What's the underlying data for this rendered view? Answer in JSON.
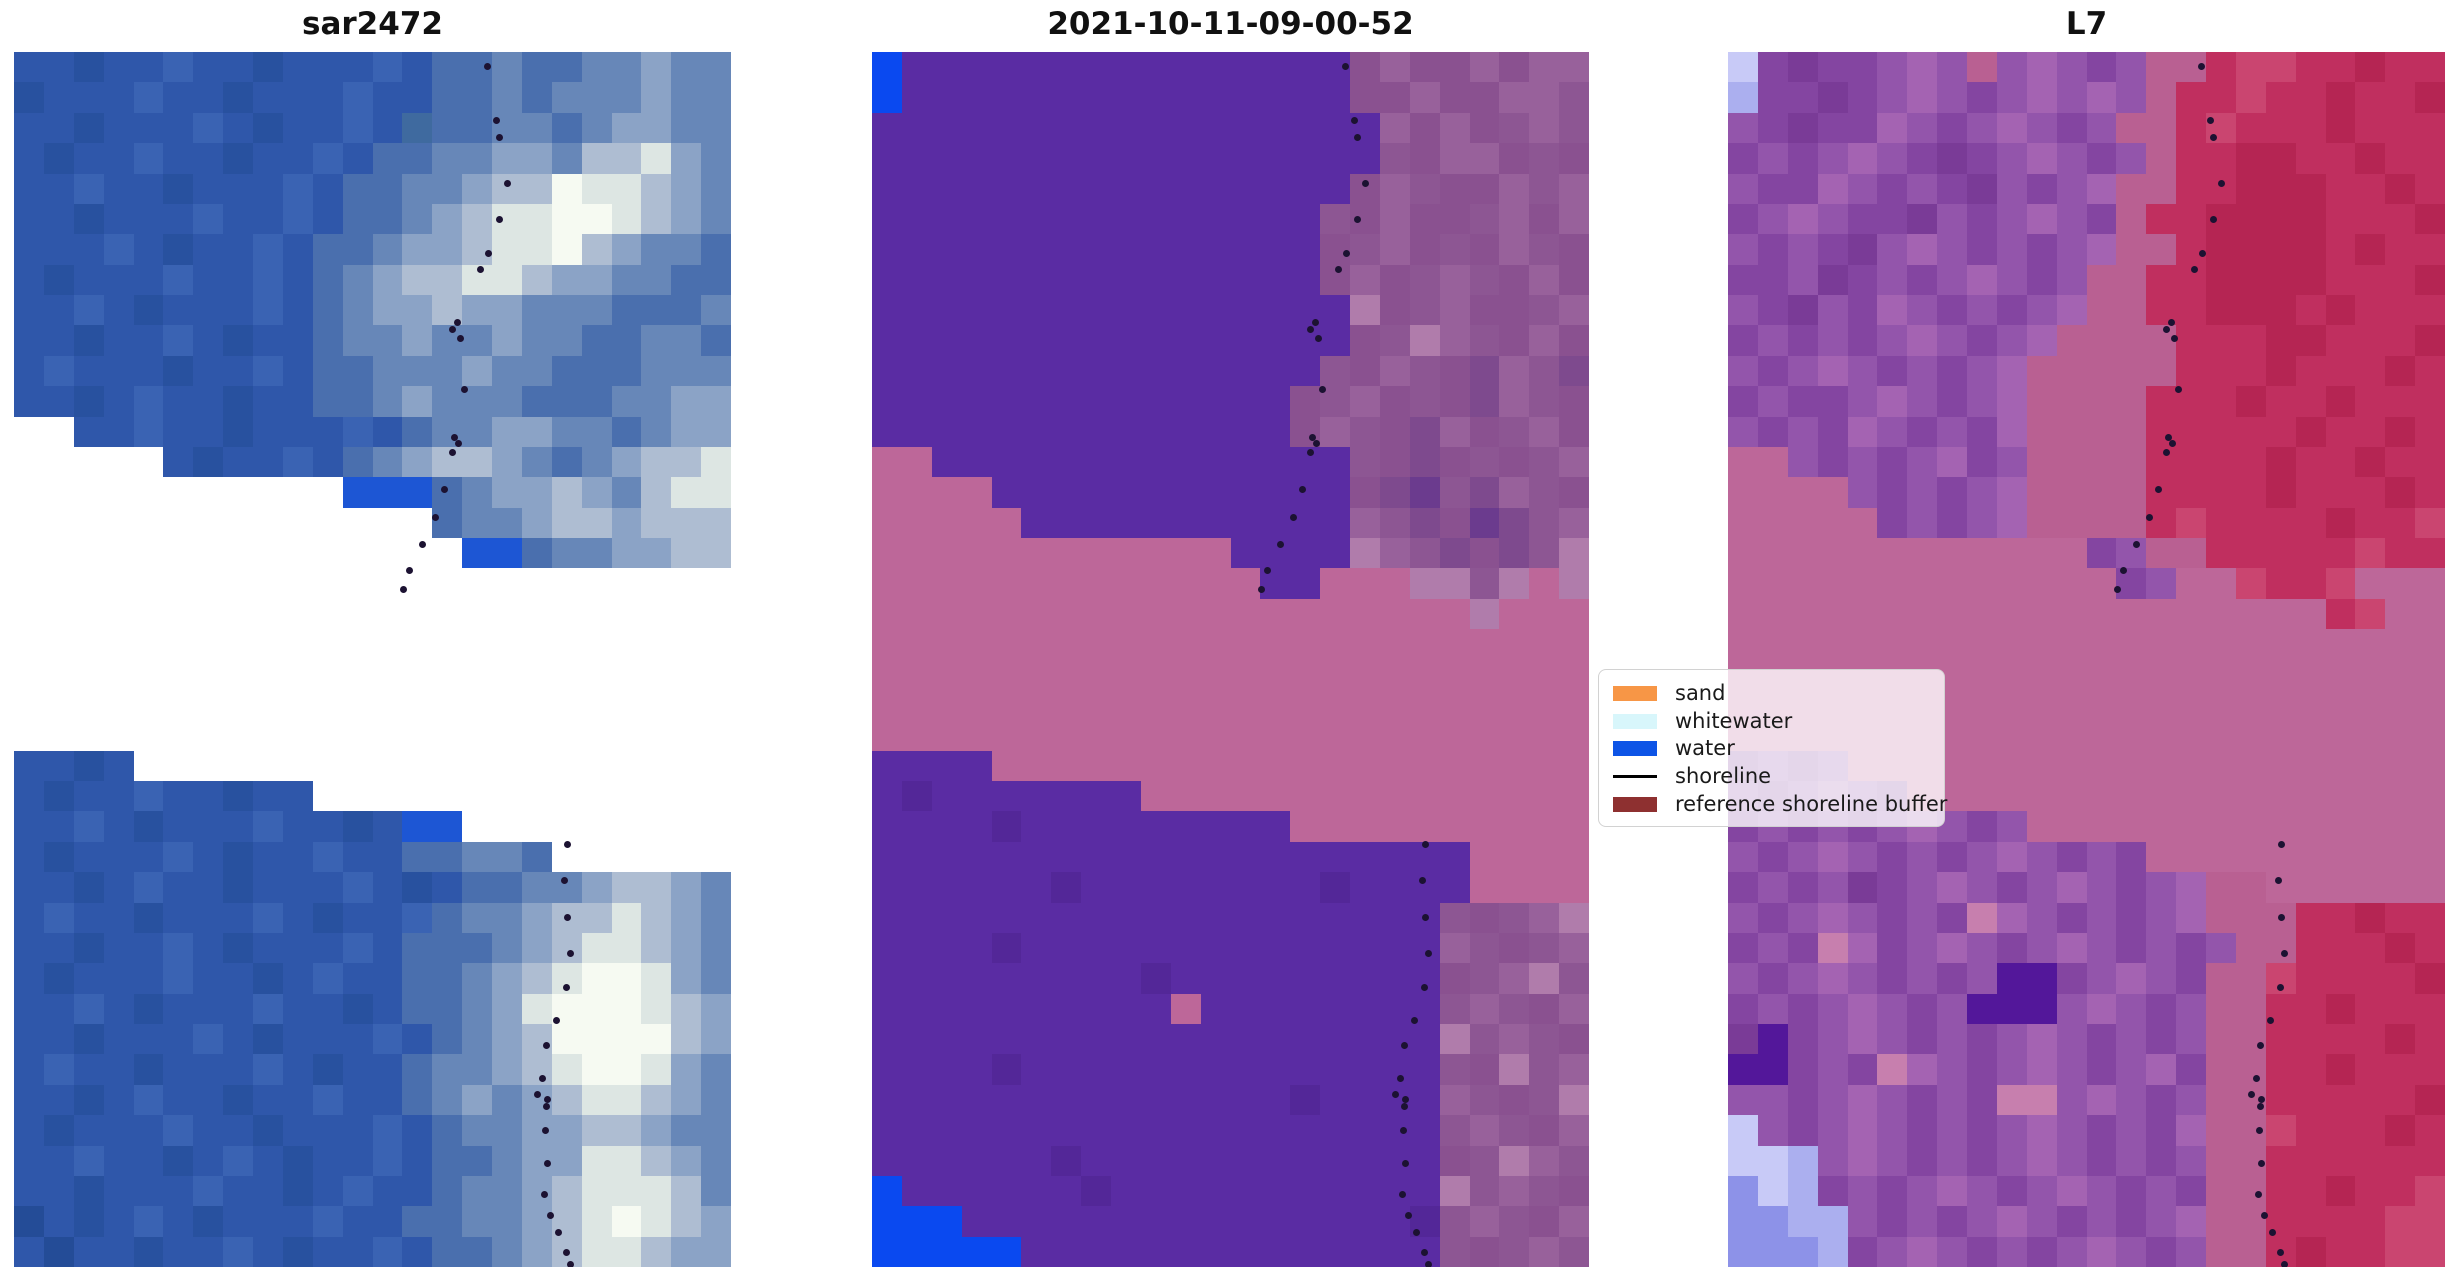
{
  "figure": {
    "background": "#ffffff",
    "titles": [
      "sar2472",
      "2021-10-11-09-00-52",
      "L7"
    ]
  },
  "chart_data": {
    "type": "heatmap",
    "description": "Three-panel pixelated satellite shoreline-detection figure: SAR image, classified image dated 2021-10-11-09-00-52, and Landsat 7 image, each crossed by a dotted detected shoreline and a semi-transparent pink reference-shoreline-buffer band; white stair-stepped areas are no-data gaps.",
    "grid_size": {
      "cols": 24,
      "rows": 40
    },
    "panels": [
      {
        "title": "sar2472",
        "palette": {
          "a": "#2f57aa",
          "b": "#28519f",
          "c": "#3a63b3",
          "j": "#244c97",
          "m": "#3f6a9f",
          "d": "#4a6fae",
          "e": "#6787b8",
          "f": "#8ba3c6",
          "g": "#aebdd2",
          "h": "#dde6e3",
          "i": "#f6faf2",
          "k": "#1d56d4",
          "w": "#ffffff"
        },
        "rows": [
          "aabaacaabaaacaddeddeefee",
          "baaacaabaaacaaddedeeefee",
          "aabaaacabaacamddeedeffee",
          "abaacaabaacaddeeffegghfe",
          "aacaabaaacaddeefggihhgfe",
          "aabaaacaacaddefghhiihgfe",
          "aaacabaacaddeffghhigfeed",
          "abaaacaacadefgghhgffeedd",
          "aacabaaacadeffgffeeeddde",
          "aabaacabaadeefeefeeddeed",
          "acaaabaacaddeeefeedddeee",
          "aabacaabaaddefeeedddeeff",
          "wwaacaabaaacadeeffeedeff",
          "wwwwwabaacadefggfedefggh",
          "wwwwwwwwwwwkkkdeffgfeghh",
          "wwwwwwwwwwwwwwdeefggfggg",
          "wwwwwwwwwwwwwwwkkdeeffgg",
          "wwwwwwwwwwwwwwwwwwwwwwww",
          "wwwwwwwwwwwwwwwwwwwwwwww",
          "wwwwwwwwwwwwwwwwwwwwwwww",
          "wwwwwwwwwwwwwwwwwwwwwwww",
          "wwwwwwwwwwwwwwwwwwwwwwww",
          "wwwwwwwwwwwwwwwwwwwwwwww",
          "aabawwwwwwwwwwwwwwwwwwww",
          "abaacaabaawwwwwwwwwwwwww",
          "aacabaaacaabakkwwwwwwwww",
          "abaaacabaacaaddeedwwwwww",
          "aabacaabaaacabaddeefggfe",
          "acaabaaacabaacdeefgghgfe",
          "aabaacabaaacadddefghhgfe",
          "abaaacaabacaaddefghiihfe",
          "aacabaaacaabaddefhiiihgf",
          "aabaaacabaaacadefgiiiigf",
          "acaabaaacabaadeefghiihfe",
          "aabacaabaacaadefefghhgfe",
          "abaaacaabaaacadeeffggfee",
          "aacaabacabaacaddeffhhgfe",
          "aabaaacaabacaadeefghhhge",
          "jabacabaaacaaddeefghihgf",
          "ajaabaacabaacaddefghhgff"
        ]
      },
      {
        "title": "2021-10-11-09-00-52",
        "palette": {
          "p": "#5a2ca3",
          "P": "#532798",
          "q": "#0a49f0",
          "r": "#bd6799",
          "s": "#8a5190",
          "t": "#98619b",
          "u": "#b07cab",
          "v": "#7e4a8e",
          "x": "#6b3b8e",
          "z": "#8d5693"
        },
        "rows": [
          "qpppppppppppppppstsststt",
          "qpppppppppppppppsstssttz",
          "ppppppppppppppppptstsztz",
          "pppppppppppppppppzsttszs",
          "ppppppppppppppppstzsstzt",
          "pppppppppppppppzstssztst",
          "pppppppppppppppsztszstzs",
          "pppppppppppppppstsztzsts",
          "ppppppppppppppppusztsszt",
          "ppppppppppppppppszutzsts",
          "pppppppppppppppzstzsvtzv",
          "ppppppppppppppsztszsvtzs",
          "ppppppppppppppstzsvtszts",
          "rrppppppppppppppzsvszszt",
          "rrrrppppppppppppsvxzvtzs",
          "rrrrrppppppppppptzvsxvzt",
          "rrrrrrrrrrrrpppputzvsvzu",
          "rrrrrrrrrrrrrpprrruuzuru",
          "rrrrrrrrrrrrrrrrrrrrurrr",
          "rrrrrrrrrrrrrrrrrrrrrrrr",
          "rrrrrrrrrrrrrrrrrrrrrrrr",
          "rrrrrrrrrrrrrrrrrrrrrrrr",
          "rrrrrrrrrrrrrrrrrrrrrrrr",
          "pppprrrrrrrrrrrrrrrrrrrr",
          "pPppppppprrrrrrrrrrrrrrr",
          "ppppPppppppppprrrrrrrrrr",
          "pppppppppppppppppppprrrr",
          "ppppppPppppppppPpppprrrr",
          "pppppppppppppppppppzsztu",
          "ppppPpppppppppppppptzszt",
          "pppppppppPpppppppppsztuz",
          "pppppppppprppppppppztzst",
          "pppppppppppppppppppuztzs",
          "ppppPppppppppppppppzsuzt",
          "ppppppppppppppPpppptzszu",
          "pppppppppppppppppppztzst",
          "ppppppPppppppppppppszutz",
          "qppppppPpppppppppppuztzs",
          "qqqpppppppppppppppPztzst",
          "qqqqqppppppppppppppzsztz"
        ]
      },
      {
        "title": "L7",
        "palette": {
          "A": "#9355ab",
          "B": "#8445a1",
          "C": "#a463b2",
          "Q": "#7a3b97",
          "D": "#c02f5f",
          "E": "#b52553",
          "F": "#ca4570",
          "H": "#b96092",
          "G": "#bd6799",
          "I": "#53179a",
          "J": "#8d92e8",
          "K": "#c8caf7",
          "L": "#abafef",
          "M": "#c77fae"
        },
        "rows": [
          "KBQBBACAHACABAHHDFFDDEDD",
          "LBBQBACABACACAHDDFDDEDDE",
          "ABQBBCABACABAHHDFDDDEDDD",
          "BABACABQBACABAHDDEEDDEDD",
          "ABBCABABQABACHHDDEEEDDED",
          "BACABBQABACABHDDEEEEDDDE",
          "ABABQACABABACHHDEEEEDEDD",
          "BBAQBABACABAHHDDEEEEDDDE",
          "ABQABCABABACHHDDEEEDEDDD",
          "BABABACABACHHHHDDDEEDDDE",
          "ABACABABACHHHHHDDDEDDDED",
          "BABBACABACHHHHDDDEDDEDDD",
          "ABABCABABCHHHHDDDDDEDDED",
          "GGABABACBAHHHHDDDDEDDEDD",
          "GGGGABABACHHHHDDDDEDDDED",
          "GGGGGBABACHHHHDFDDDDEDDF",
          "GGGGGGGGGGGGBAHHDDDDDFDD",
          "GGGGGGGGGGGGGBAGGFDDFGGG",
          "GGGGGGGGGGGGGGGGGGGGDFGG",
          "GGGGGGGGGGGGGGGGGGGGGGGG",
          "GGGGGGGGGGGGGGGGGGGGGGGG",
          "GGGGGGGGGGGGGGGGGGGGGGGG",
          "GGGGGGGGGGGGGGGGGGGGGGGG",
          "BABAGGGGGGGGGGGGGGGGGGGG",
          "ABACABGGGGGGGGGGGGGGGGGG",
          "BABABACABAGGGGGGGGGGGGGG",
          "ABACABABACABABGGGGGGGGGG",
          "BABAQBACABACABACHHGGGGGG",
          "ABACABABMCABABACHHHDDEDD",
          "BABMCBACABACABABAHHDDDED",
          "ABACABABAIIBACABHHFDDDDE",
          "BABACABAIIIACABAHHDDEDDD",
          "QIBACABABACABABAHHDDDDED",
          "IIBABMCABACABACBHHDDEDDD",
          "AABACABABMMACABAHHDDDDDE",
          "KABACABABACABABCHHFDDDED",
          "KKLACABABACABABAHHDDDDDD",
          "JKLBABACABACABABHHDDEDDF",
          "JJLLABABACABABACHHDDDDFF",
          "JJJLBACABABACABAHHDEDDFF"
        ]
      }
    ],
    "shoreline_dot_color": "#1c1232",
    "shoreline_dots": [
      [
        0.66,
        0.012
      ],
      [
        0.673,
        0.056
      ],
      [
        0.677,
        0.07
      ],
      [
        0.688,
        0.108
      ],
      [
        0.677,
        0.138
      ],
      [
        0.662,
        0.166
      ],
      [
        0.651,
        0.179
      ],
      [
        0.618,
        0.223
      ],
      [
        0.612,
        0.228
      ],
      [
        0.623,
        0.236
      ],
      [
        0.629,
        0.278
      ],
      [
        0.615,
        0.317
      ],
      [
        0.62,
        0.322
      ],
      [
        0.612,
        0.33
      ],
      [
        0.601,
        0.36
      ],
      [
        0.588,
        0.383
      ],
      [
        0.57,
        0.405
      ],
      [
        0.552,
        0.427
      ],
      [
        0.543,
        0.442
      ],
      [
        0.772,
        0.652
      ],
      [
        0.768,
        0.682
      ],
      [
        0.772,
        0.712
      ],
      [
        0.776,
        0.742
      ],
      [
        0.77,
        0.77
      ],
      [
        0.756,
        0.797
      ],
      [
        0.742,
        0.818
      ],
      [
        0.737,
        0.845
      ],
      [
        0.73,
        0.858
      ],
      [
        0.744,
        0.862
      ],
      [
        0.743,
        0.868
      ],
      [
        0.741,
        0.888
      ],
      [
        0.744,
        0.915
      ],
      [
        0.74,
        0.94
      ],
      [
        0.748,
        0.958
      ],
      [
        0.76,
        0.972
      ],
      [
        0.77,
        0.988
      ],
      [
        0.776,
        0.998
      ]
    ],
    "legend": {
      "entries": [
        {
          "label": "sand",
          "swatch": "patch",
          "color": "#f79646"
        },
        {
          "label": "whitewater",
          "swatch": "patch",
          "color": "#d8f6fb"
        },
        {
          "label": "water",
          "swatch": "patch",
          "color": "#0d54e6"
        },
        {
          "label": "shoreline",
          "swatch": "line",
          "color": "#000000"
        },
        {
          "label": "reference shoreline buffer",
          "swatch": "patch",
          "color": "#8e3030"
        }
      ]
    }
  }
}
